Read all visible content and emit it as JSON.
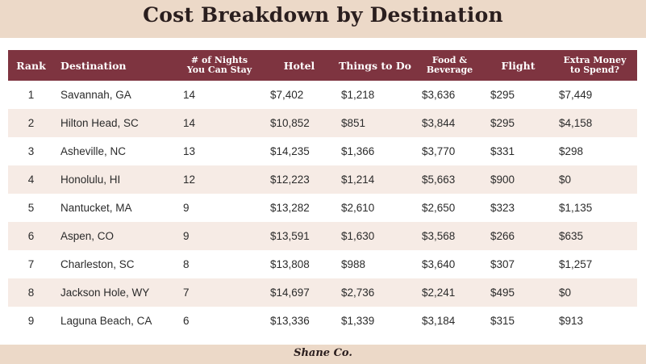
{
  "title": "Cost Breakdown by Destination",
  "logo_text": "Shane Co.",
  "colors": {
    "header_bg": "#7e3440",
    "band_bg": "#ecd9c8",
    "alt_row_bg": "#f6ebe5"
  },
  "chart_data": {
    "type": "table",
    "title": "Cost Breakdown by Destination",
    "columns": [
      "Rank",
      "Destination",
      "# of Nights You Can Stay",
      "Hotel",
      "Things to Do",
      "Food & Beverage",
      "Flight",
      "Extra Money to Spend?"
    ],
    "column_lines": [
      [
        "Rank"
      ],
      [
        "Destination"
      ],
      [
        "# of Nights",
        "You Can Stay"
      ],
      [
        "Hotel"
      ],
      [
        "Things to Do"
      ],
      [
        "Food &",
        "Beverage"
      ],
      [
        "Flight"
      ],
      [
        "Extra Money",
        "to Spend?"
      ]
    ],
    "rows": [
      [
        "1",
        "Savannah, GA",
        "14",
        "$7,402",
        "$1,218",
        "$3,636",
        "$295",
        "$7,449"
      ],
      [
        "2",
        "Hilton Head, SC",
        "14",
        "$10,852",
        "$851",
        "$3,844",
        "$295",
        "$4,158"
      ],
      [
        "3",
        "Asheville, NC",
        "13",
        "$14,235",
        "$1,366",
        "$3,770",
        "$331",
        "$298"
      ],
      [
        "4",
        "Honolulu, HI",
        "12",
        "$12,223",
        "$1,214",
        "$5,663",
        "$900",
        "$0"
      ],
      [
        "5",
        "Nantucket, MA",
        "9",
        "$13,282",
        "$2,610",
        "$2,650",
        "$323",
        "$1,135"
      ],
      [
        "6",
        "Aspen, CO",
        "9",
        "$13,591",
        "$1,630",
        "$3,568",
        "$266",
        "$635"
      ],
      [
        "7",
        "Charleston, SC",
        "8",
        "$13,808",
        "$988",
        "$3,640",
        "$307",
        "$1,257"
      ],
      [
        "8",
        "Jackson Hole, WY",
        "7",
        "$14,697",
        "$2,736",
        "$2,241",
        "$495",
        "$0"
      ],
      [
        "9",
        "Laguna Beach, CA",
        "6",
        "$13,336",
        "$1,339",
        "$3,184",
        "$315",
        "$913"
      ]
    ]
  }
}
